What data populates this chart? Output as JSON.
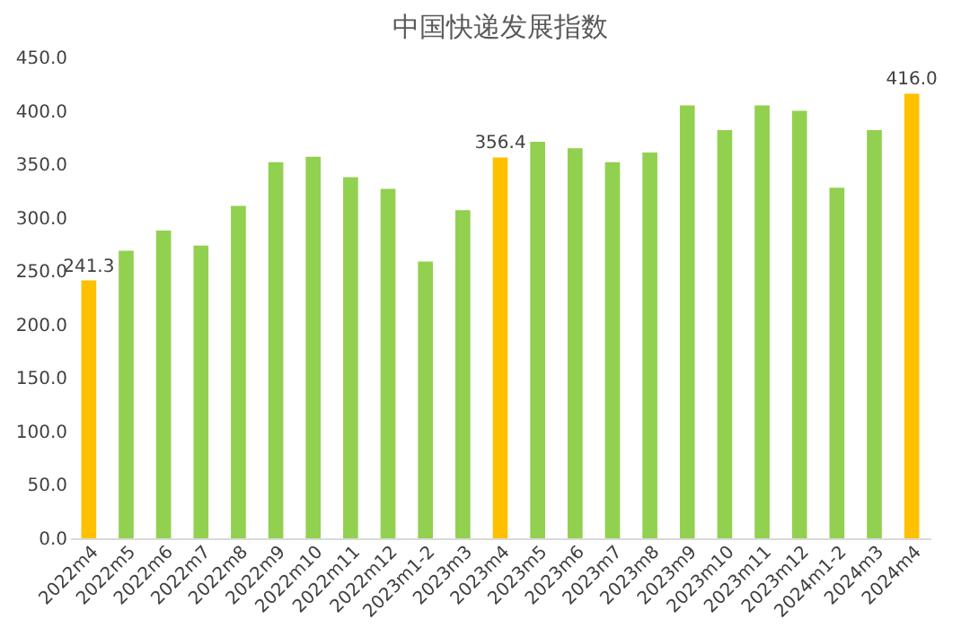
{
  "chart_data": {
    "type": "bar",
    "title": "中国快递发展指数",
    "categories": [
      "2022m4",
      "2022m5",
      "2022m6",
      "2022m7",
      "2022m8",
      "2022m9",
      "2022m10",
      "2022m11",
      "2022m12",
      "2023m1-2",
      "2023m3",
      "2023m4",
      "2023m5",
      "2023m6",
      "2023m7",
      "2023m8",
      "2023m9",
      "2023m10",
      "2023m11",
      "2023m12",
      "2024m1-2",
      "2024m3",
      "2024m4"
    ],
    "values": [
      241.3,
      269,
      288,
      274,
      311,
      352,
      357,
      338,
      327,
      259,
      307,
      356.4,
      371,
      365,
      352,
      361,
      405,
      382,
      405,
      400,
      328,
      382,
      416.0
    ],
    "colors": [
      "#ffc000",
      "#92d050",
      "#92d050",
      "#92d050",
      "#92d050",
      "#92d050",
      "#92d050",
      "#92d050",
      "#92d050",
      "#92d050",
      "#92d050",
      "#ffc000",
      "#92d050",
      "#92d050",
      "#92d050",
      "#92d050",
      "#92d050",
      "#92d050",
      "#92d050",
      "#92d050",
      "#92d050",
      "#92d050",
      "#ffc000"
    ],
    "value_labels": [
      "241.3",
      null,
      null,
      null,
      null,
      null,
      null,
      null,
      null,
      null,
      null,
      "356.4",
      null,
      null,
      null,
      null,
      null,
      null,
      null,
      null,
      null,
      null,
      "416.0"
    ],
    "ylim": [
      0,
      450
    ],
    "yticks": [
      {
        "value": 0,
        "label": "0.0"
      },
      {
        "value": 50,
        "label": "50.0"
      },
      {
        "value": 100,
        "label": "100.0"
      },
      {
        "value": 150,
        "label": "150.0"
      },
      {
        "value": 200,
        "label": "200.0"
      },
      {
        "value": 250,
        "label": "250.0"
      },
      {
        "value": 300,
        "label": "300.0"
      },
      {
        "value": 350,
        "label": "350.0"
      },
      {
        "value": 400,
        "label": "400.0"
      },
      {
        "value": 450,
        "label": "450.0"
      }
    ],
    "grid": false
  }
}
